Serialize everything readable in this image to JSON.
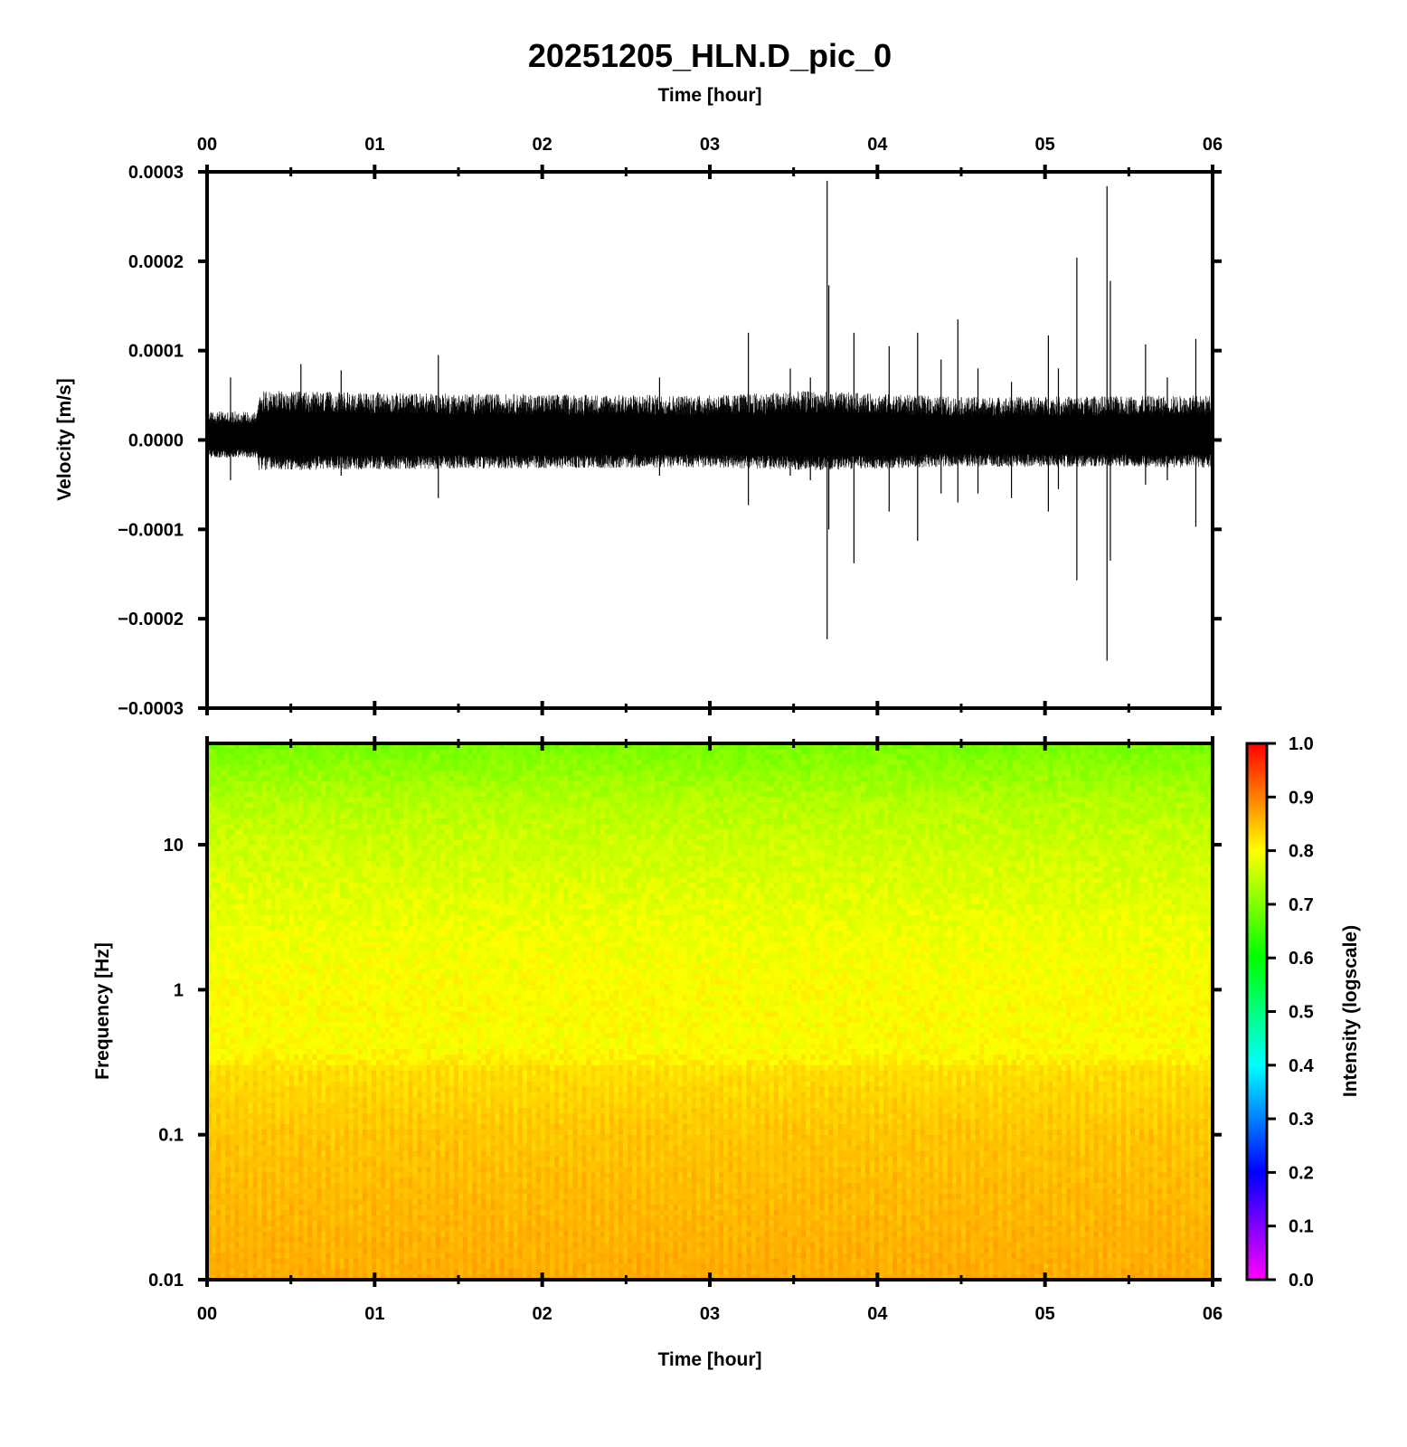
{
  "chart_data": [
    {
      "type": "line",
      "title": "20251205_HLN.D_pic_0",
      "xlabel": "Time [hour]",
      "ylabel": "Velocity [m/s]",
      "xlim": [
        0,
        6
      ],
      "ylim": [
        -0.0003,
        0.0003
      ],
      "x_ticks": [
        "00",
        "01",
        "02",
        "03",
        "04",
        "05",
        "06"
      ],
      "y_ticks": [
        "0.0003",
        "0.0002",
        "0.0001",
        "0.0000",
        "−0.0001",
        "−0.0002",
        "−0.0003"
      ],
      "y_tick_values": [
        0.0003,
        0.0002,
        0.0001,
        0,
        -0.0001,
        -0.0002,
        -0.0003
      ],
      "grid": false,
      "series_color": "#000000",
      "noise_envelope": [
        {
          "x": 0.0,
          "amplitude": 3.2e-05
        },
        {
          "x": 0.3,
          "amplitude": 3.2e-05
        },
        {
          "x": 0.31,
          "amplitude": 5.5e-05
        },
        {
          "x": 1.5,
          "amplitude": 5.2e-05
        },
        {
          "x": 3.0,
          "amplitude": 5e-05
        },
        {
          "x": 3.6,
          "amplitude": 5.5e-05
        },
        {
          "x": 4.5,
          "amplitude": 4.8e-05
        },
        {
          "x": 6.0,
          "amplitude": 5e-05
        }
      ],
      "spikes": [
        {
          "x": 0.14,
          "max": 7e-05,
          "min": -4.5e-05
        },
        {
          "x": 0.56,
          "max": 8.5e-05,
          "min": -3e-05
        },
        {
          "x": 0.8,
          "max": 7.8e-05,
          "min": -4e-05
        },
        {
          "x": 1.38,
          "max": 9.5e-05,
          "min": -6.5e-05
        },
        {
          "x": 2.7,
          "max": 7e-05,
          "min": -4e-05
        },
        {
          "x": 3.23,
          "max": 0.00012,
          "min": -7.3e-05
        },
        {
          "x": 3.48,
          "max": 8e-05,
          "min": -4e-05
        },
        {
          "x": 3.6,
          "max": 7e-05,
          "min": -4.5e-05
        },
        {
          "x": 3.7,
          "max": 0.00029,
          "min": -0.000223
        },
        {
          "x": 3.71,
          "max": 0.000173,
          "min": -0.0001
        },
        {
          "x": 3.86,
          "max": 0.00012,
          "min": -0.000138
        },
        {
          "x": 4.07,
          "max": 0.000105,
          "min": -8e-05
        },
        {
          "x": 4.24,
          "max": 0.00012,
          "min": -0.000113
        },
        {
          "x": 4.38,
          "max": 9e-05,
          "min": -6e-05
        },
        {
          "x": 4.48,
          "max": 0.000135,
          "min": -7e-05
        },
        {
          "x": 4.6,
          "max": 8e-05,
          "min": -6e-05
        },
        {
          "x": 4.8,
          "max": 6.5e-05,
          "min": -6.5e-05
        },
        {
          "x": 5.02,
          "max": 0.000117,
          "min": -8e-05
        },
        {
          "x": 5.08,
          "max": 8e-05,
          "min": -5.5e-05
        },
        {
          "x": 5.19,
          "max": 0.000204,
          "min": -0.000157
        },
        {
          "x": 5.37,
          "max": 0.000284,
          "min": -0.000247
        },
        {
          "x": 5.39,
          "max": 0.000178,
          "min": -0.000135
        },
        {
          "x": 5.6,
          "max": 0.000107,
          "min": -5e-05
        },
        {
          "x": 5.73,
          "max": 7e-05,
          "min": -4.5e-05
        },
        {
          "x": 5.9,
          "max": 0.000113,
          "min": -9.7e-05
        }
      ]
    },
    {
      "type": "heatmap",
      "xlabel": "Time [hour]",
      "ylabel": "Frequency [Hz]",
      "xlim": [
        0,
        6
      ],
      "ylim": [
        0.01,
        50
      ],
      "y_scale": "log",
      "x_ticks": [
        "00",
        "01",
        "02",
        "03",
        "04",
        "05",
        "06"
      ],
      "y_ticks": [
        "10",
        "1",
        "0.1",
        "0.01"
      ],
      "y_tick_values": [
        10,
        1,
        0.1,
        0.01
      ],
      "colorbar": {
        "label": "Intensity (logscale)",
        "range": [
          0,
          1
        ],
        "ticks": [
          "1.0",
          "0.9",
          "0.8",
          "0.7",
          "0.6",
          "0.5",
          "0.4",
          "0.3",
          "0.2",
          "0.1",
          "0.0"
        ],
        "tick_values": [
          1.0,
          0.9,
          0.8,
          0.7,
          0.6,
          0.5,
          0.4,
          0.3,
          0.2,
          0.1,
          0.0
        ],
        "colors": [
          "#ff00ff",
          "#8000ff",
          "#0000ff",
          "#0080ff",
          "#00ffff",
          "#00ff80",
          "#00ff00",
          "#80ff00",
          "#ffff00",
          "#ff8000",
          "#ff0000"
        ]
      },
      "intensity_profile": [
        {
          "frequency": 50,
          "intensity": 0.69
        },
        {
          "frequency": 20,
          "intensity": 0.74
        },
        {
          "frequency": 10,
          "intensity": 0.76
        },
        {
          "frequency": 3,
          "intensity": 0.785
        },
        {
          "frequency": 1,
          "intensity": 0.8
        },
        {
          "frequency": 0.4,
          "intensity": 0.8
        },
        {
          "frequency": 0.27,
          "intensity": 0.82
        },
        {
          "frequency": 0.1,
          "intensity": 0.84
        },
        {
          "frequency": 0.01,
          "intensity": 0.86
        }
      ]
    }
  ]
}
